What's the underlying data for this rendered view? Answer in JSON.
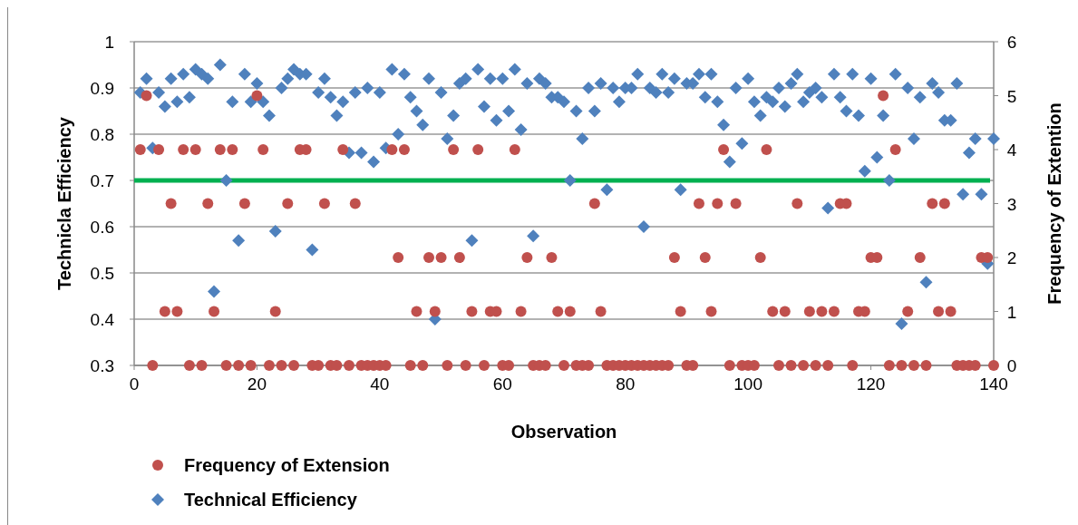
{
  "chart_data": {
    "type": "scatter",
    "xlabel": "Observation",
    "ylabel": "Technicla Efficiency",
    "y2label": "Frequency of Extention",
    "x": [
      1,
      2,
      3,
      4,
      5,
      6,
      7,
      8,
      9,
      10,
      11,
      12,
      13,
      14,
      15,
      16,
      17,
      18,
      19,
      20,
      21,
      22,
      23,
      24,
      25,
      26,
      27,
      28,
      29,
      30,
      31,
      32,
      33,
      34,
      35,
      36,
      37,
      38,
      39,
      40,
      41,
      42,
      43,
      44,
      45,
      46,
      47,
      48,
      49,
      50,
      51,
      52,
      53,
      54,
      55,
      56,
      57,
      58,
      59,
      60,
      61,
      62,
      63,
      64,
      65,
      66,
      67,
      68,
      69,
      70,
      71,
      72,
      73,
      74,
      75,
      76,
      77,
      78,
      79,
      80,
      81,
      82,
      83,
      84,
      85,
      86,
      87,
      88,
      89,
      90,
      91,
      92,
      93,
      94,
      95,
      96,
      97,
      98,
      99,
      100,
      101,
      102,
      103,
      104,
      105,
      106,
      107,
      108,
      109,
      110,
      111,
      112,
      113,
      114,
      115,
      116,
      117,
      118,
      119,
      120,
      121,
      122,
      123,
      124,
      125,
      126,
      127,
      128,
      129,
      130,
      131,
      132,
      133,
      134,
      135,
      136,
      137,
      138,
      139,
      140
    ],
    "series": [
      {
        "name": "Frequency of Extension",
        "color": "#c0504d",
        "marker": "circle",
        "axis": "y2",
        "values": [
          4,
          5,
          0,
          4,
          1,
          3,
          1,
          4,
          0,
          4,
          0,
          3,
          1,
          4,
          0,
          4,
          0,
          3,
          0,
          5,
          4,
          0,
          1,
          0,
          3,
          0,
          4,
          4,
          0,
          0,
          3,
          0,
          0,
          4,
          0,
          3,
          0,
          0,
          0,
          0,
          0,
          4,
          2,
          4,
          0,
          1,
          0,
          2,
          1,
          2,
          0,
          4,
          2,
          0,
          1,
          4,
          0,
          1,
          1,
          0,
          0,
          4,
          1,
          2,
          0,
          0,
          0,
          2,
          1,
          0,
          1,
          0,
          0,
          0,
          3,
          1,
          0,
          0,
          0,
          0,
          0,
          0,
          0,
          0,
          0,
          0,
          0,
          2,
          1,
          0,
          0,
          3,
          2,
          1,
          3,
          4,
          0,
          3,
          0,
          0,
          0,
          2,
          4,
          1,
          0,
          1,
          0,
          3,
          0,
          1,
          0,
          1,
          0,
          1,
          3,
          3,
          0,
          1,
          1,
          2,
          2,
          5,
          0,
          4,
          0,
          1,
          0,
          2,
          0,
          3,
          1,
          3,
          1,
          0,
          0,
          0,
          0,
          2,
          2,
          0
        ]
      },
      {
        "name": "Technical Efficiency",
        "color": "#4f81bd",
        "marker": "diamond",
        "values": [
          0.89,
          0.92,
          0.77,
          0.89,
          0.86,
          0.92,
          0.87,
          0.93,
          0.88,
          0.94,
          0.93,
          0.92,
          0.46,
          0.95,
          0.7,
          0.87,
          0.57,
          0.93,
          0.87,
          0.91,
          0.87,
          0.84,
          0.59,
          0.9,
          0.92,
          0.94,
          0.93,
          0.93,
          0.55,
          0.89,
          0.92,
          0.88,
          0.84,
          0.87,
          0.76,
          0.89,
          0.76,
          0.9,
          0.74,
          0.89,
          0.77,
          0.94,
          0.8,
          0.93,
          0.88,
          0.85,
          0.82,
          0.92,
          0.4,
          0.89,
          0.79,
          0.84,
          0.91,
          0.92,
          0.57,
          0.94,
          0.86,
          0.92,
          0.83,
          0.92,
          0.85,
          0.94,
          0.81,
          0.91,
          0.58,
          0.92,
          0.91,
          0.88,
          0.88,
          0.87,
          0.7,
          0.85,
          0.79,
          0.9,
          0.85,
          0.91,
          0.68,
          0.9,
          0.87,
          0.9,
          0.9,
          0.93,
          0.6,
          0.9,
          0.89,
          0.93,
          0.89,
          0.92,
          0.68,
          0.91,
          0.91,
          0.93,
          0.88,
          0.93,
          0.87,
          0.82,
          0.74,
          0.9,
          0.78,
          0.92,
          0.87,
          0.84,
          0.88,
          0.87,
          0.9,
          0.86,
          0.91,
          0.93,
          0.87,
          0.89,
          0.9,
          0.88,
          0.64,
          0.93,
          0.88,
          0.85,
          0.93,
          0.84,
          0.72,
          0.92,
          0.75,
          0.84,
          0.7,
          0.93,
          0.39,
          0.9,
          0.79,
          0.88,
          0.48,
          0.91,
          0.89,
          0.83,
          0.83,
          0.91,
          0.67,
          0.76,
          0.79,
          0.67,
          0.52,
          0.79
        ]
      }
    ],
    "xlim": [
      0,
      140
    ],
    "xticks": [
      0,
      20,
      40,
      60,
      80,
      100,
      120,
      140
    ],
    "ylim": [
      0.3,
      1
    ],
    "yticks": [
      0.3,
      0.4,
      0.5,
      0.6,
      0.7,
      0.8,
      0.9,
      1
    ],
    "y2lim": [
      0,
      6
    ],
    "y2ticks": [
      0,
      1,
      2,
      3,
      4,
      5,
      6
    ],
    "ref_lines": [
      {
        "axis": "y",
        "value": 0.7,
        "color": "#00b050"
      }
    ],
    "grid": "y",
    "legend": "bottom left"
  }
}
